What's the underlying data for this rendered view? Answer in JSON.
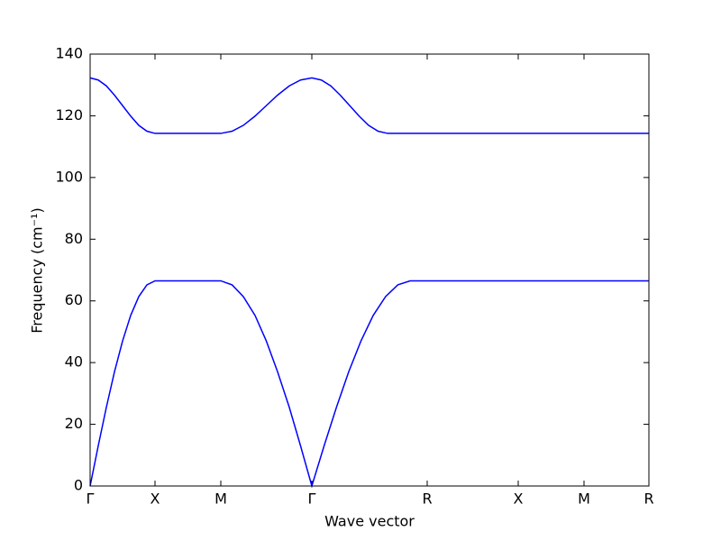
{
  "chart_data": {
    "type": "line",
    "xlabel": "Wave vector",
    "ylabel": "Frequency (cm⁻¹)",
    "xlim": [
      0,
      6.2
    ],
    "ylim": [
      0,
      140
    ],
    "xticks": [
      {
        "value": 0,
        "label": "Γ"
      },
      {
        "value": 0.72,
        "label": "X"
      },
      {
        "value": 1.45,
        "label": "M"
      },
      {
        "value": 2.46,
        "label": "Γ"
      },
      {
        "value": 3.74,
        "label": "R"
      },
      {
        "value": 4.75,
        "label": "X"
      },
      {
        "value": 5.48,
        "label": "M"
      },
      {
        "value": 6.2,
        "label": "R"
      }
    ],
    "yticks": [
      0,
      20,
      40,
      60,
      80,
      100,
      120,
      140
    ],
    "grid": false,
    "series": [
      {
        "color": "#0000ff",
        "x": [
          0,
          0.09,
          0.18,
          0.27,
          0.36,
          0.45,
          0.54,
          0.63,
          0.72,
          1.45,
          1.575,
          1.7,
          1.83,
          1.955,
          2.08,
          2.21,
          2.335,
          2.46,
          2.596,
          2.733,
          2.869,
          3.005,
          3.141,
          3.278,
          3.414,
          3.55,
          3.74,
          4.75,
          5.48,
          6.2
        ],
        "values": [
          0,
          13.0,
          25.5,
          37.0,
          47.0,
          55.3,
          61.4,
          65.2,
          66.5,
          66.5,
          65.2,
          61.4,
          55.3,
          47.0,
          37.0,
          25.5,
          13.0,
          0,
          13.0,
          25.5,
          37.0,
          47.0,
          55.3,
          61.4,
          65.2,
          66.5,
          66.5,
          66.5,
          66.5,
          66.5
        ]
      },
      {
        "color": "#0000ff",
        "x": [
          0,
          0.09,
          0.18,
          0.27,
          0.36,
          0.45,
          0.54,
          0.63,
          0.72,
          1.45,
          1.575,
          1.7,
          1.83,
          1.955,
          2.08,
          2.21,
          2.335,
          2.46,
          2.565,
          2.67,
          2.775,
          2.88,
          2.985,
          3.09,
          3.195,
          3.3,
          3.74,
          4.75,
          5.48,
          6.2
        ],
        "values": [
          132.3,
          131.6,
          129.7,
          126.7,
          123.3,
          119.9,
          116.9,
          115.0,
          114.3,
          114.3,
          115.0,
          116.9,
          119.9,
          123.3,
          126.7,
          129.7,
          131.6,
          132.3,
          131.6,
          129.7,
          126.7,
          123.3,
          119.9,
          116.9,
          115.0,
          114.3,
          114.3,
          114.3,
          114.3,
          114.3
        ]
      }
    ]
  }
}
